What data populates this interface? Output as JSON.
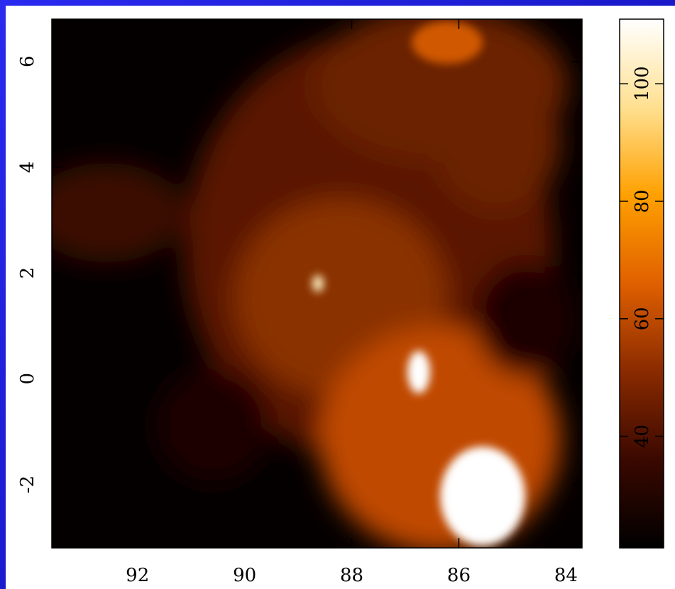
{
  "chart_data": {
    "type": "image",
    "xlim": [
      93.6,
      83.7
    ],
    "xticks": [
      92,
      90,
      88,
      86,
      84
    ],
    "ylim": [
      -3.2,
      6.8
    ],
    "yticks": [
      -2,
      0,
      2,
      4,
      6
    ],
    "colorbar": {
      "lim": [
        21,
        111
      ],
      "ticks": [
        40,
        60,
        80,
        100
      ],
      "colors": [
        "#000000",
        "#3a0800",
        "#8a2a00",
        "#e06000",
        "#ffa000",
        "#ffe090",
        "#ffffff"
      ]
    }
  }
}
